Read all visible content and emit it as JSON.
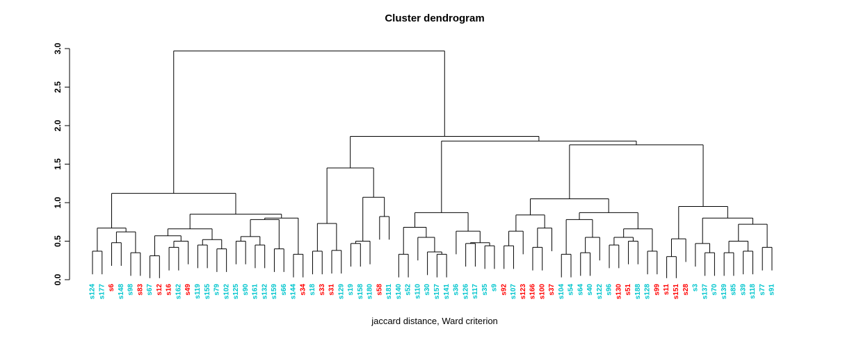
{
  "chart_data": {
    "type": "dendrogram",
    "title": "Cluster dendrogram",
    "xlabel": "jaccard distance, Ward criterion",
    "ylabel": "",
    "ylim": [
      0.0,
      3.0
    ],
    "yticks": [
      "0.0",
      "0.5",
      "1.0",
      "1.5",
      "2.0",
      "2.5",
      "3.0"
    ],
    "hang": 0.3,
    "root_height": 2.97,
    "leaf_label_colors": {
      "cyan": "#00c5cd",
      "red": "#ff0000"
    },
    "leaves": [
      {
        "label": "s124",
        "color": "cyan"
      },
      {
        "label": "s177",
        "color": "cyan"
      },
      {
        "label": "s6",
        "color": "red"
      },
      {
        "label": "s148",
        "color": "cyan"
      },
      {
        "label": "s98",
        "color": "cyan"
      },
      {
        "label": "s83",
        "color": "red"
      },
      {
        "label": "s67",
        "color": "cyan"
      },
      {
        "label": "s12",
        "color": "red"
      },
      {
        "label": "s16",
        "color": "red"
      },
      {
        "label": "s162",
        "color": "cyan"
      },
      {
        "label": "s49",
        "color": "red"
      },
      {
        "label": "s119",
        "color": "cyan"
      },
      {
        "label": "s155",
        "color": "cyan"
      },
      {
        "label": "s79",
        "color": "cyan"
      },
      {
        "label": "s102",
        "color": "cyan"
      },
      {
        "label": "s125",
        "color": "cyan"
      },
      {
        "label": "s90",
        "color": "cyan"
      },
      {
        "label": "s161",
        "color": "cyan"
      },
      {
        "label": "s132",
        "color": "cyan"
      },
      {
        "label": "s159",
        "color": "cyan"
      },
      {
        "label": "s66",
        "color": "cyan"
      },
      {
        "label": "s144",
        "color": "cyan"
      },
      {
        "label": "s34",
        "color": "red"
      },
      {
        "label": "s18",
        "color": "cyan"
      },
      {
        "label": "s33",
        "color": "red"
      },
      {
        "label": "s31",
        "color": "red"
      },
      {
        "label": "s129",
        "color": "cyan"
      },
      {
        "label": "s19",
        "color": "cyan"
      },
      {
        "label": "s158",
        "color": "cyan"
      },
      {
        "label": "s180",
        "color": "cyan"
      },
      {
        "label": "s58",
        "color": "red"
      },
      {
        "label": "s181",
        "color": "cyan"
      },
      {
        "label": "s140",
        "color": "cyan"
      },
      {
        "label": "s52",
        "color": "cyan"
      },
      {
        "label": "s110",
        "color": "cyan"
      },
      {
        "label": "s30",
        "color": "cyan"
      },
      {
        "label": "s157",
        "color": "cyan"
      },
      {
        "label": "s141",
        "color": "cyan"
      },
      {
        "label": "s36",
        "color": "cyan"
      },
      {
        "label": "s126",
        "color": "cyan"
      },
      {
        "label": "s117",
        "color": "cyan"
      },
      {
        "label": "s35",
        "color": "cyan"
      },
      {
        "label": "s9",
        "color": "cyan"
      },
      {
        "label": "s92",
        "color": "red"
      },
      {
        "label": "s107",
        "color": "cyan"
      },
      {
        "label": "s123",
        "color": "red"
      },
      {
        "label": "s166",
        "color": "red"
      },
      {
        "label": "s100",
        "color": "red"
      },
      {
        "label": "s37",
        "color": "red"
      },
      {
        "label": "s104",
        "color": "cyan"
      },
      {
        "label": "s54",
        "color": "cyan"
      },
      {
        "label": "s64",
        "color": "cyan"
      },
      {
        "label": "s40",
        "color": "cyan"
      },
      {
        "label": "s122",
        "color": "cyan"
      },
      {
        "label": "s96",
        "color": "cyan"
      },
      {
        "label": "s130",
        "color": "red"
      },
      {
        "label": "s51",
        "color": "red"
      },
      {
        "label": "s188",
        "color": "cyan"
      },
      {
        "label": "s128",
        "color": "cyan"
      },
      {
        "label": "s99",
        "color": "red"
      },
      {
        "label": "s11",
        "color": "red"
      },
      {
        "label": "s151",
        "color": "red"
      },
      {
        "label": "s28",
        "color": "red"
      },
      {
        "label": "s3",
        "color": "cyan"
      },
      {
        "label": "s137",
        "color": "cyan"
      },
      {
        "label": "s70",
        "color": "cyan"
      },
      {
        "label": "s139",
        "color": "cyan"
      },
      {
        "label": "s85",
        "color": "cyan"
      },
      {
        "label": "s39",
        "color": "cyan"
      },
      {
        "label": "s118",
        "color": "cyan"
      },
      {
        "label": "s77",
        "color": "cyan"
      },
      {
        "label": "s91",
        "color": "cyan"
      }
    ],
    "tree": [
      2.97,
      [
        1.12,
        [
          0.67,
          [
            0.37,
            "s124",
            "s177"
          ],
          [
            0.62,
            [
              0.48,
              "s6",
              "s148"
            ],
            [
              0.35,
              "s98",
              "s83"
            ]
          ]
        ],
        [
          0.85,
          [
            0.66,
            [
              0.57,
              [
                0.31,
                "s67",
                "s12"
              ],
              [
                0.5,
                [
                  0.42,
                  "s16",
                  "s162"
                ],
                "s49"
              ]
            ],
            [
              0.52,
              [
                0.45,
                "s119",
                "s155"
              ],
              [
                0.4,
                "s79",
                "s102"
              ]
            ]
          ],
          [
            0.8,
            [
              0.78,
              [
                0.56,
                [
                  0.5,
                  "s125",
                  "s90"
                ],
                [
                  0.45,
                  "s161",
                  "s132"
                ]
              ],
              [
                0.4,
                "s159",
                "s66"
              ]
            ],
            [
              0.33,
              "s144",
              "s34"
            ]
          ]
        ]
      ],
      [
        1.86,
        [
          1.45,
          [
            0.73,
            [
              0.37,
              "s18",
              "s33"
            ],
            [
              0.38,
              "s31",
              "s129"
            ]
          ],
          [
            1.07,
            [
              0.5,
              [
                0.47,
                "s19",
                "s158"
              ],
              "s180"
            ],
            [
              0.82,
              "s58",
              "s181"
            ]
          ]
        ],
        [
          1.8,
          [
            0.87,
            [
              0.68,
              [
                0.33,
                "s140",
                "s52"
              ],
              [
                0.55,
                "s110",
                [
                  0.36,
                  "s30",
                  [
                    0.33,
                    "s157",
                    "s141"
                  ]
                ]
              ]
            ],
            [
              0.63,
              "s36",
              [
                0.48,
                [
                  0.47,
                  "s126",
                  "s117"
                ],
                [
                  0.44,
                  "s35",
                  "s9"
                ]
              ]
            ]
          ],
          [
            1.75,
            [
              1.05,
              [
                0.84,
                [
                  0.63,
                  [
                    0.44,
                    "s92",
                    "s107"
                  ],
                  "s123"
                ],
                [
                  0.67,
                  [
                    0.42,
                    "s166",
                    "s100"
                  ],
                  "s37"
                ]
              ],
              [
                0.87,
                [
                  0.78,
                  [
                    0.33,
                    "s104",
                    "s54"
                  ],
                  [
                    0.55,
                    [
                      0.35,
                      "s64",
                      "s40"
                    ],
                    "s122"
                  ]
                ],
                [
                  0.66,
                  [
                    0.55,
                    [
                      0.45,
                      "s96",
                      "s130"
                    ],
                    [
                      0.5,
                      "s51",
                      "s188"
                    ]
                  ],
                  [
                    0.37,
                    "s128",
                    "s99"
                  ]
                ]
              ]
            ],
            [
              0.95,
              [
                0.53,
                [
                  0.3,
                  "s11",
                  "s151"
                ],
                "s28"
              ],
              [
                0.8,
                [
                  0.47,
                  "s3",
                  [
                    0.35,
                    "s137",
                    "s70"
                  ]
                ],
                [
                  0.72,
                  [
                    0.5,
                    [
                      0.35,
                      "s139",
                      "s85"
                    ],
                    [
                      0.37,
                      "s39",
                      "s118"
                    ]
                  ],
                  [
                    0.42,
                    "s77",
                    "s91"
                  ]
                ]
              ]
            ]
          ]
        ]
      ]
    ]
  }
}
